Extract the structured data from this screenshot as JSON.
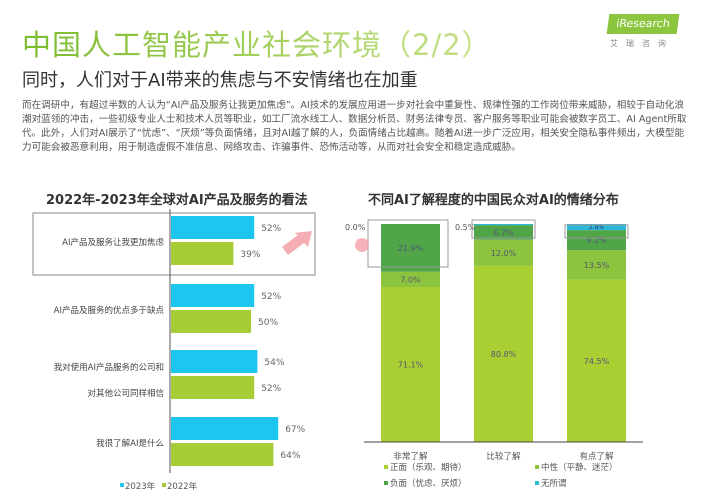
{
  "header": {
    "title": "中国人工智能产业社会环境（2/2）",
    "subtitle": "同时，人们对于AI带来的焦虑与不安情绪也在加重",
    "logo_text": "iResearch",
    "logo_sub": "艾瑞咨询"
  },
  "body_text": "而在调研中，有超过半数的人认为“AI产品及服务让我更加焦虑”。AI技术的发展应用进一步对社会中重复性、规律性强的工作岗位带来威胁，相较于自动化浪潮对蓝领的冲击，一些初级专业人士和技术人员等职业，如工厂流水线工人、数据分析员、财务法律专员、客户服务等职业可能会被数字员工、AI Agent所取代。此外，人们对AI展示了“忧虑”、“厌烦”等负面情绪，且对AI越了解的人，负面情绪占比越高。随着AI进一步广泛应用，相关安全隐私事件频出，大模型能力可能会被恶意利用，用于制造虚假不准信息、网络攻击、诈骗事件、恐怖活动等，从而对社会安全和稳定造成威胁。",
  "chart_data": [
    {
      "type": "bar",
      "orientation": "horizontal",
      "title": "2022年-2023年全球对AI产品及服务的看法",
      "categories": [
        "AI产品及服务让我更加焦虑",
        "AI产品及服务的优点多于缺点",
        "我对使用AI产品服务的公司和对其他公司同样相信",
        "我很了解AI是什么"
      ],
      "series": [
        {
          "name": "2023年",
          "color": "#1cc6ee",
          "values": [
            52,
            52,
            54,
            67
          ],
          "labels": [
            "52%",
            "52%",
            "54%",
            "67%"
          ]
        },
        {
          "name": "2022年",
          "color": "#a6cd36",
          "values": [
            39,
            50,
            52,
            64
          ],
          "labels": [
            "39%",
            "50%",
            "52%",
            "64%"
          ]
        }
      ],
      "legend": "bottom",
      "highlight": "AI产品及服务让我更加焦虑"
    },
    {
      "type": "bar",
      "stacked": true,
      "title": "不同AI了解程度的中国民众对AI的情绪分布",
      "categories": [
        "非常了解",
        "比较了解",
        "有点了解"
      ],
      "series": [
        {
          "name": "正面（乐观、期待）",
          "color": "#aacf32",
          "values": [
            71.1,
            80.8,
            74.5
          ],
          "labels": [
            "71.1%",
            "80.8%",
            "74.5%"
          ]
        },
        {
          "name": "中性（平静、迷茫）",
          "color": "#8cc43e",
          "values": [
            7.0,
            12.0,
            13.5
          ],
          "labels": [
            "7.0%",
            "12.0%",
            "13.5%"
          ]
        },
        {
          "name": "负面（忧虑、厌烦）",
          "color": "#4fa548",
          "values": [
            21.9,
            6.7,
            9.2
          ],
          "labels": [
            "21.9%",
            "6.7%",
            "9.2%"
          ]
        },
        {
          "name": "无所谓",
          "color": "#2db7d9",
          "values": [
            0.0,
            0.5,
            2.8
          ],
          "labels": [
            "0.0%",
            "0.5%",
            "2.8%"
          ]
        }
      ],
      "ylim": [
        0,
        100
      ],
      "legend": "bottom"
    }
  ]
}
